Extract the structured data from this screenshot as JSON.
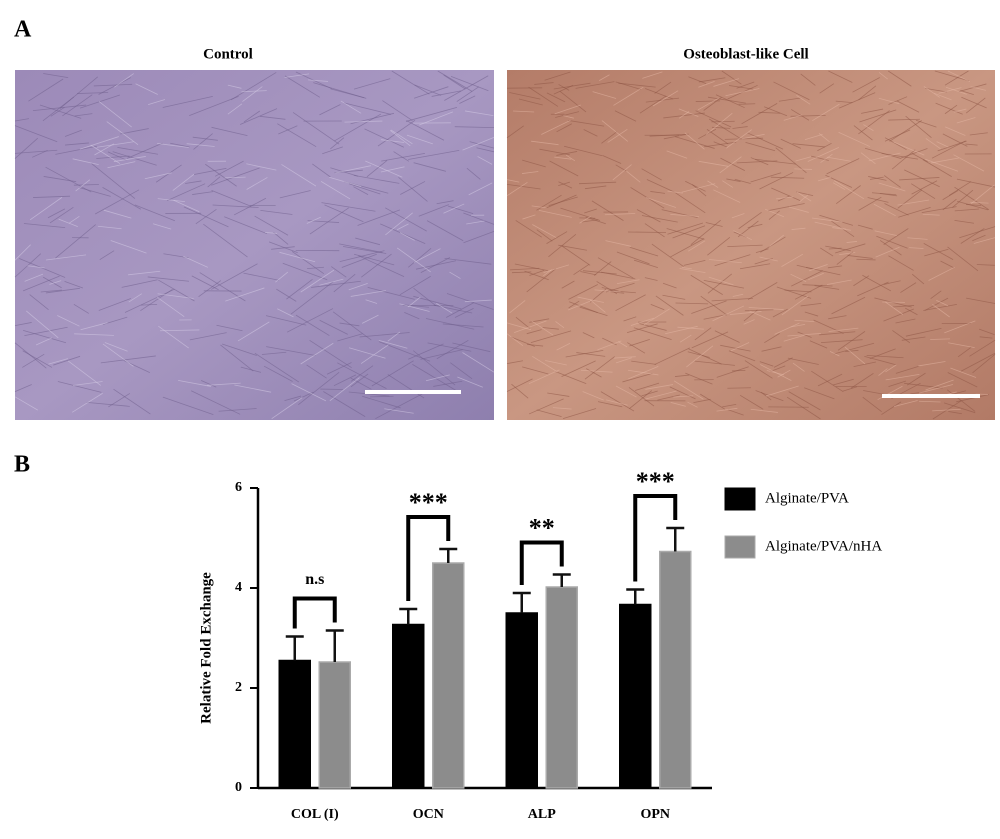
{
  "panel_a": {
    "label": "A",
    "images": [
      {
        "title": "Control"
      },
      {
        "title": "Osteoblast-like Cell"
      }
    ]
  },
  "panel_b": {
    "label": "B"
  },
  "chart_data": {
    "type": "bar",
    "y_label": "Relative Fold Exchange",
    "categories": [
      "COL (I)",
      "OCN",
      "ALP",
      "OPN"
    ],
    "series": [
      {
        "name": "Alginate/PVA",
        "color": "#000000",
        "values": [
          2.55,
          3.27,
          3.5,
          3.67
        ],
        "errors": [
          0.48,
          0.31,
          0.4,
          0.3
        ]
      },
      {
        "name": "Alginate/PVA/nHA",
        "color": "#8c8c8c",
        "values": [
          2.52,
          4.5,
          4.02,
          4.73
        ],
        "errors": [
          0.63,
          0.28,
          0.25,
          0.47
        ]
      }
    ],
    "annotations": [
      "n.s",
      "***",
      "**",
      "***"
    ],
    "ylim": [
      0,
      6
    ],
    "yticks": [
      0,
      2,
      4,
      6
    ],
    "legend": "right"
  }
}
